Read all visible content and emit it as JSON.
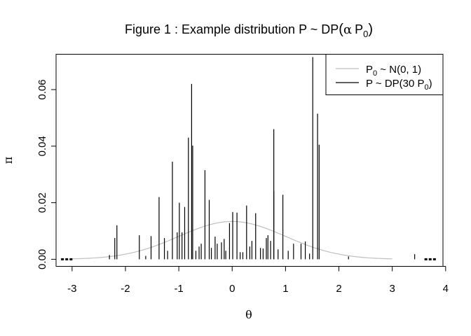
{
  "chart_data": {
    "type": "line",
    "title": {
      "prefix": "Figure 1 :  Example distribution P ~ DP",
      "alpha": "α",
      "p": "P",
      "sub": "0"
    },
    "xlabel": "θ",
    "ylabel": "π",
    "xlim": [
      -3.3,
      3.95
    ],
    "ylim": [
      -0.0025,
      0.0725
    ],
    "xticks": [
      -3,
      -2,
      -1,
      0,
      1,
      2,
      3,
      4
    ],
    "yticks": [
      0.0,
      0.02,
      0.04,
      0.06
    ],
    "ytick_labels": [
      "0.00",
      "0.02",
      "0.04",
      "0.06"
    ],
    "legend": {
      "position": "top-right",
      "entries": [
        {
          "pre": "P",
          "sub": "0",
          "post": " ~ N(0, 1)",
          "color": "#bebebe"
        },
        {
          "pre": "P ~ DP(30 P",
          "sub": "0",
          "post": ")",
          "color": "#000000"
        }
      ]
    },
    "base_curve": {
      "name": "P0 ~ N(0, 1)",
      "color": "#bebebe",
      "x_range": [
        -3,
        3
      ],
      "mean": 0,
      "sd": 1,
      "scale": 0.0335
    },
    "atoms": {
      "name": "P ~ DP(30 P0)",
      "color": "#000000",
      "x": [
        1.51,
        -0.76,
        1.6,
        -0.74,
        0.78,
        1.63,
        -0.82,
        -1.12,
        -0.51,
        0.95,
        -0.43,
        0.78,
        -1.37,
        -0.99,
        0.27,
        -0.89,
        -2.16,
        0.44,
        0.01,
        0.09,
        -0.05,
        0.67,
        -1.03,
        -0.94,
        -0.32,
        0.37,
        1.15,
        1.37,
        1.29,
        -1.27,
        -0.15,
        -0.2,
        -1.74,
        -1.52,
        0.64,
        0.72,
        -0.28,
        -0.62,
        0.33,
        0.53,
        -0.39,
        0.58,
        0.86,
        1.05,
        -0.12,
        -0.68,
        0.2,
        -1.21,
        1.45,
        -2.2,
        -0.58,
        0.15,
        3.42,
        -2.3,
        -1.62,
        2.18
      ],
      "y": [
        0.0715,
        0.062,
        0.0515,
        0.0402,
        0.046,
        0.0405,
        0.043,
        0.0345,
        0.0315,
        0.0228,
        0.021,
        0.0242,
        0.022,
        0.02,
        0.019,
        0.0185,
        0.012,
        0.0163,
        0.0167,
        0.0165,
        0.0128,
        0.0085,
        0.0095,
        0.0095,
        0.008,
        0.0065,
        0.0055,
        0.0063,
        0.0055,
        0.0075,
        0.0072,
        0.006,
        0.0085,
        0.0082,
        0.0075,
        0.0065,
        0.0055,
        0.0045,
        0.0045,
        0.004,
        0.004,
        0.0038,
        0.0035,
        0.003,
        0.003,
        0.003,
        0.0025,
        0.003,
        0.002,
        0.0075,
        0.0055,
        0.0025,
        0.0018,
        0.0015,
        0.0012,
        0.001
      ],
      "dots_left": [
        -3.18,
        -3.1,
        -3.02
      ],
      "dots_right": [
        3.63,
        3.71,
        3.79
      ]
    }
  }
}
